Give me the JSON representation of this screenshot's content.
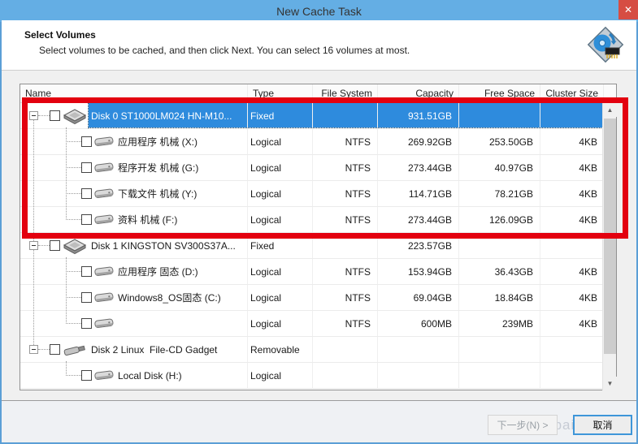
{
  "window": {
    "title": "New Cache Task",
    "close_glyph": "✕"
  },
  "header": {
    "title": "Select Volumes",
    "subtitle": "Select volumes to be cached, and then click Next. You can select 16 volumes at most."
  },
  "table": {
    "columns": [
      "Name",
      "Type",
      "File System",
      "Capacity",
      "Free Space",
      "Cluster Size"
    ],
    "rows": [
      {
        "name": "Disk 0 ST1000LM024 HN-M10...",
        "type": "Fixed",
        "fs": "",
        "capacity": "931.51GB",
        "free": "",
        "cluster": "",
        "level": 0,
        "icon": "hdd",
        "selected": true
      },
      {
        "name": "应用程序 机械 (X:)",
        "type": "Logical",
        "fs": "NTFS",
        "capacity": "269.92GB",
        "free": "253.50GB",
        "cluster": "4KB",
        "level": 1,
        "icon": "volume"
      },
      {
        "name": "程序开发 机械 (G:)",
        "type": "Logical",
        "fs": "NTFS",
        "capacity": "273.44GB",
        "free": "40.97GB",
        "cluster": "4KB",
        "level": 1,
        "icon": "volume"
      },
      {
        "name": "下载文件 机械 (Y:)",
        "type": "Logical",
        "fs": "NTFS",
        "capacity": "114.71GB",
        "free": "78.21GB",
        "cluster": "4KB",
        "level": 1,
        "icon": "volume"
      },
      {
        "name": "资料 机械 (F:)",
        "type": "Logical",
        "fs": "NTFS",
        "capacity": "273.44GB",
        "free": "126.09GB",
        "cluster": "4KB",
        "level": 1,
        "icon": "volume"
      },
      {
        "name": "Disk 1 KINGSTON SV300S37A...",
        "type": "Fixed",
        "fs": "",
        "capacity": "223.57GB",
        "free": "",
        "cluster": "",
        "level": 0,
        "icon": "hdd"
      },
      {
        "name": "应用程序 固态 (D:)",
        "type": "Logical",
        "fs": "NTFS",
        "capacity": "153.94GB",
        "free": "36.43GB",
        "cluster": "4KB",
        "level": 1,
        "icon": "volume"
      },
      {
        "name": "Windows8_OS固态 (C:)",
        "type": "Logical",
        "fs": "NTFS",
        "capacity": "69.04GB",
        "free": "18.84GB",
        "cluster": "4KB",
        "level": 1,
        "icon": "volume"
      },
      {
        "name": "",
        "type": "Logical",
        "fs": "NTFS",
        "capacity": "600MB",
        "free": "239MB",
        "cluster": "4KB",
        "level": 1,
        "icon": "volume"
      },
      {
        "name": "Disk 2 Linux  File-CD Gadget",
        "type": "Removable",
        "fs": "",
        "capacity": "",
        "free": "",
        "cluster": "",
        "level": 0,
        "icon": "usb"
      },
      {
        "name": "Local Disk (H:)",
        "type": "Logical",
        "fs": "",
        "capacity": "",
        "free": "",
        "cluster": "",
        "level": 1,
        "icon": "volume"
      }
    ]
  },
  "scrollbar": {
    "up_glyph": "▲",
    "down_glyph": "▼"
  },
  "footer": {
    "next_label": "下一步(N) >",
    "cancel_label": "取消",
    "watermark": "jingyan.baidu.com"
  },
  "colors": {
    "c-titlebar": "#64aee4",
    "c-dlgborder": "#5b9fd6",
    "c-close": "#d64d43",
    "c-sel": "#2e8bdd",
    "c-annot": "#e3000f"
  }
}
